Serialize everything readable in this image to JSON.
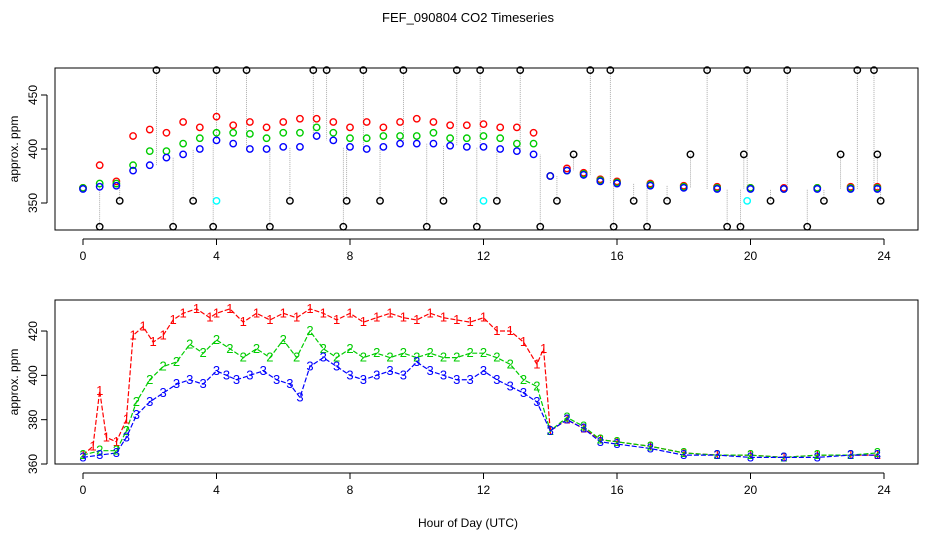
{
  "figure": {
    "title": "FEF_090804  CO2 Timeseries",
    "xlabel": "Hour of Day (UTC)"
  },
  "colors": {
    "series_1": "#ff0000",
    "series_2": "#00cc00",
    "series_3": "#0000ff",
    "flagged": "#000000",
    "cal": "#00ffff",
    "spikes": "#999999"
  },
  "chart_data": [
    {
      "type": "scatter",
      "panel": "top",
      "ylabel": "approx. ppm",
      "xlim": [
        0,
        24
      ],
      "ylim": [
        325,
        475
      ],
      "x_ticks": [
        0,
        4,
        8,
        12,
        16,
        20,
        24
      ],
      "y_ticks": [
        350,
        400,
        450
      ],
      "x_tick_labels": [
        "0",
        "4",
        "8",
        "12",
        "16",
        "20",
        "24"
      ],
      "y_tick_labels": [
        "350",
        "400",
        "450"
      ],
      "grid": false,
      "legend": "none",
      "series": [
        {
          "x": [
            0.0,
            0.5,
            1.0,
            1.5,
            2.0,
            2.5,
            3.0,
            3.5,
            4.0,
            4.5,
            5.0,
            5.5,
            6.0,
            6.5,
            7.0,
            7.5,
            8.0,
            8.5,
            9.0,
            9.5,
            10.0,
            10.5,
            11.0,
            11.5,
            12.0,
            12.5,
            13.0,
            13.5,
            14.0,
            14.5,
            15.0,
            15.5,
            16.0,
            17.0,
            18.0,
            19.0,
            20.0,
            21.0,
            22.0,
            23.0,
            23.8
          ],
          "y": [
            364,
            385,
            370,
            412,
            418,
            415,
            425,
            420,
            430,
            422,
            425,
            420,
            425,
            428,
            428,
            425,
            420,
            425,
            420,
            425,
            428,
            425,
            422,
            422,
            423,
            420,
            420,
            415,
            375,
            382,
            378,
            372,
            370,
            368,
            366,
            365,
            364,
            364,
            364,
            365,
            365
          ]
        },
        {
          "x": [
            0.0,
            0.5,
            1.0,
            1.5,
            2.0,
            2.5,
            3.0,
            3.5,
            4.0,
            4.5,
            5.0,
            5.5,
            6.0,
            6.5,
            7.0,
            7.5,
            8.0,
            8.5,
            9.0,
            9.5,
            10.0,
            10.5,
            11.0,
            11.5,
            12.0,
            12.5,
            13.0,
            13.5,
            14.0,
            14.5,
            15.0,
            15.5,
            16.0,
            17.0,
            18.0,
            19.0,
            20.0,
            21.0,
            22.0,
            23.0,
            23.8
          ],
          "y": [
            364,
            368,
            368,
            385,
            398,
            398,
            405,
            410,
            415,
            415,
            414,
            410,
            415,
            415,
            420,
            415,
            410,
            410,
            412,
            412,
            412,
            415,
            410,
            410,
            412,
            410,
            405,
            405,
            375,
            380,
            377,
            371,
            369,
            367,
            365,
            364,
            364,
            363,
            364,
            364,
            364
          ]
        },
        {
          "x": [
            0.0,
            0.5,
            1.0,
            1.5,
            2.0,
            2.5,
            3.0,
            3.5,
            4.0,
            4.5,
            5.0,
            5.5,
            6.0,
            6.5,
            7.0,
            7.5,
            8.0,
            8.5,
            9.0,
            9.5,
            10.0,
            10.5,
            11.0,
            11.5,
            12.0,
            12.5,
            13.0,
            13.5,
            14.0,
            14.5,
            15.0,
            15.5,
            16.0,
            17.0,
            18.0,
            19.0,
            20.0,
            21.0,
            22.0,
            23.0,
            23.8
          ],
          "y": [
            363,
            365,
            366,
            380,
            385,
            392,
            395,
            400,
            408,
            405,
            400,
            400,
            402,
            402,
            412,
            408,
            402,
            400,
            402,
            405,
            405,
            405,
            403,
            402,
            402,
            400,
            398,
            395,
            375,
            380,
            376,
            370,
            368,
            366,
            364,
            363,
            363,
            363,
            363,
            363,
            363
          ]
        },
        {
          "x": [
            0.5,
            1.1,
            2.2,
            2.7,
            3.3,
            3.9,
            4.0,
            4.9,
            5.6,
            6.2,
            6.9,
            7.3,
            7.8,
            7.9,
            8.4,
            8.9,
            9.6,
            10.3,
            10.8,
            11.2,
            11.8,
            11.9,
            12.4,
            13.1,
            13.7,
            14.2,
            14.7,
            15.2,
            15.8,
            15.9,
            16.5,
            16.9,
            17.5,
            18.2,
            18.7,
            19.3,
            19.7,
            19.8,
            19.9,
            20.6,
            21.1,
            21.7,
            22.2,
            22.7,
            23.2,
            23.7,
            23.8,
            23.9
          ],
          "y": [
            328,
            352,
            473,
            328,
            352,
            328,
            473,
            473,
            328,
            352,
            473,
            473,
            328,
            352,
            473,
            352,
            473,
            328,
            352,
            473,
            328,
            473,
            352,
            473,
            328,
            352,
            395,
            473,
            473,
            328,
            352,
            328,
            352,
            395,
            473,
            328,
            328,
            395,
            473,
            352,
            473,
            328,
            352,
            395,
            473,
            473,
            395,
            352
          ]
        },
        {
          "x": [
            4.0,
            12.0,
            19.9
          ],
          "y": [
            352,
            352,
            352
          ]
        }
      ]
    },
    {
      "type": "line",
      "panel": "bottom",
      "ylabel": "approx. ppm",
      "xlim": [
        0,
        24
      ],
      "ylim": [
        360,
        434
      ],
      "x_ticks": [
        0,
        4,
        8,
        12,
        16,
        20,
        24
      ],
      "y_ticks": [
        360,
        380,
        400,
        420
      ],
      "x_tick_labels": [
        "0",
        "4",
        "8",
        "12",
        "16",
        "20",
        "24"
      ],
      "y_tick_labels": [
        "360",
        "380",
        "400",
        "420"
      ],
      "grid": false,
      "legend": "none",
      "series": [
        {
          "marker": "1",
          "x": [
            0.0,
            0.3,
            0.5,
            0.7,
            1.0,
            1.3,
            1.5,
            1.8,
            2.1,
            2.4,
            2.7,
            3.0,
            3.4,
            3.8,
            4.0,
            4.4,
            4.8,
            5.2,
            5.6,
            6.0,
            6.4,
            6.8,
            7.2,
            7.6,
            8.0,
            8.4,
            8.8,
            9.2,
            9.6,
            10.0,
            10.4,
            10.8,
            11.2,
            11.6,
            12.0,
            12.4,
            12.8,
            13.2,
            13.6,
            13.8,
            14.0,
            14.5,
            15.0,
            15.5,
            16.0,
            17.0,
            18.0,
            19.0,
            20.0,
            21.0,
            22.0,
            23.0,
            23.8
          ],
          "y": [
            364,
            368,
            393,
            372,
            370,
            380,
            418,
            422,
            415,
            418,
            425,
            428,
            430,
            426,
            428,
            430,
            424,
            428,
            425,
            428,
            426,
            430,
            428,
            425,
            428,
            424,
            426,
            428,
            426,
            425,
            428,
            426,
            425,
            424,
            426,
            420,
            420,
            415,
            405,
            412,
            375,
            380,
            376,
            371,
            370,
            368,
            365,
            364,
            364,
            363,
            364,
            364,
            364
          ]
        },
        {
          "marker": "2",
          "x": [
            0.0,
            0.5,
            1.0,
            1.3,
            1.6,
            2.0,
            2.4,
            2.8,
            3.2,
            3.6,
            4.0,
            4.4,
            4.8,
            5.2,
            5.6,
            6.0,
            6.4,
            6.8,
            7.2,
            7.6,
            8.0,
            8.4,
            8.8,
            9.2,
            9.6,
            10.0,
            10.4,
            10.8,
            11.2,
            11.6,
            12.0,
            12.4,
            12.8,
            13.2,
            13.6,
            14.0,
            14.5,
            15.0,
            15.5,
            16.0,
            17.0,
            18.0,
            19.0,
            20.0,
            21.0,
            22.0,
            23.0,
            23.8
          ],
          "y": [
            364,
            366,
            366,
            375,
            388,
            398,
            404,
            406,
            414,
            410,
            416,
            412,
            408,
            412,
            408,
            416,
            408,
            420,
            412,
            408,
            412,
            408,
            410,
            408,
            410,
            408,
            410,
            408,
            408,
            410,
            410,
            408,
            405,
            398,
            395,
            375,
            381,
            377,
            371,
            370,
            368,
            365,
            364,
            364,
            363,
            364,
            364,
            365
          ]
        },
        {
          "marker": "3",
          "x": [
            0.0,
            0.5,
            1.0,
            1.3,
            1.6,
            2.0,
            2.4,
            2.8,
            3.2,
            3.6,
            4.0,
            4.3,
            4.6,
            5.0,
            5.4,
            5.8,
            6.2,
            6.5,
            6.8,
            7.2,
            7.6,
            8.0,
            8.4,
            8.8,
            9.2,
            9.6,
            10.0,
            10.4,
            10.8,
            11.2,
            11.6,
            12.0,
            12.4,
            12.8,
            13.2,
            13.6,
            14.0,
            14.5,
            15.0,
            15.5,
            16.0,
            17.0,
            18.0,
            19.0,
            20.0,
            21.0,
            22.0,
            23.0,
            23.8
          ],
          "y": [
            363,
            364,
            365,
            372,
            382,
            388,
            392,
            396,
            398,
            396,
            402,
            400,
            398,
            400,
            402,
            398,
            396,
            390,
            404,
            408,
            404,
            400,
            398,
            400,
            402,
            400,
            406,
            402,
            400,
            398,
            398,
            402,
            398,
            395,
            392,
            388,
            375,
            380,
            376,
            370,
            369,
            367,
            364,
            364,
            363,
            363,
            363,
            364,
            364
          ]
        }
      ]
    }
  ]
}
